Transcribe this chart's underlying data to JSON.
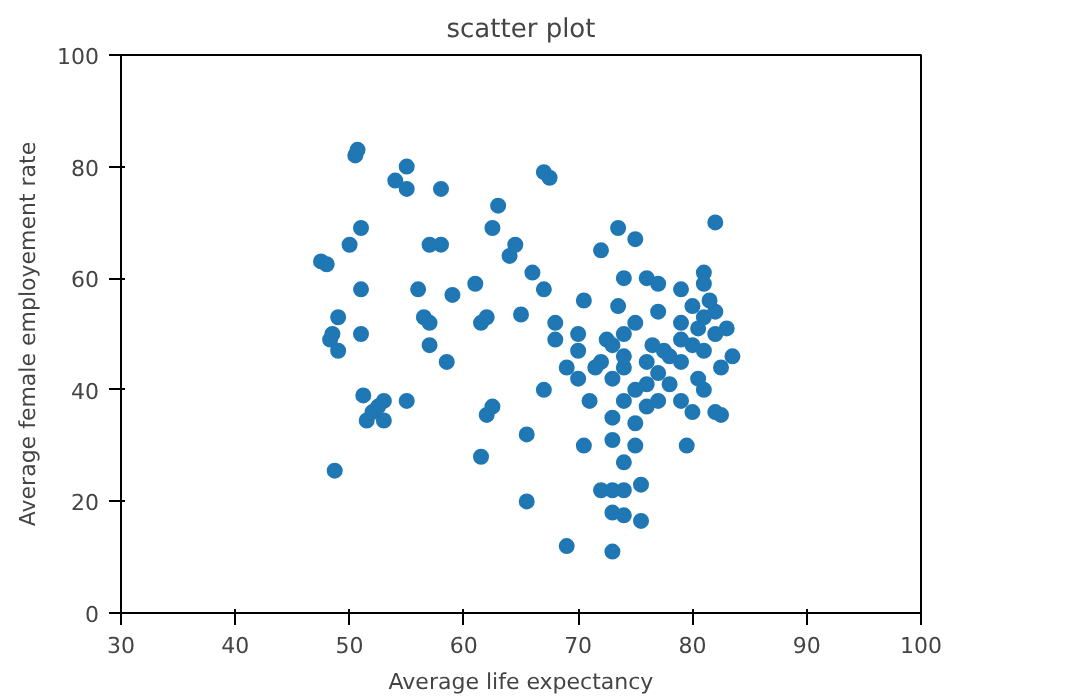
{
  "chart_data": {
    "type": "scatter",
    "title": "scatter plot",
    "xlabel": "Average life expectancy",
    "ylabel": "Average female employement rate",
    "xlim": [
      30,
      100
    ],
    "ylim": [
      0,
      100
    ],
    "xticks": [
      30,
      40,
      50,
      60,
      70,
      80,
      90,
      100
    ],
    "yticks": [
      0,
      20,
      40,
      60,
      80,
      100
    ],
    "grid": false,
    "marker": "circle",
    "series": [
      {
        "color": "#1f77b4",
        "x": [
          47.5,
          48,
          48.5,
          48.3,
          49,
          48.7,
          49,
          50,
          50.5,
          50.7,
          51,
          51,
          51,
          51.2,
          51.5,
          52,
          52.5,
          53,
          53,
          54,
          55,
          55,
          55,
          56,
          56.5,
          57,
          57,
          57,
          58,
          58,
          58.5,
          59,
          61,
          61.5,
          61.5,
          62,
          62,
          62.5,
          62.5,
          63,
          64,
          64.5,
          65,
          65.5,
          65.5,
          66,
          67,
          67.5,
          67,
          67,
          68,
          68,
          69,
          69,
          70,
          70,
          70,
          70.5,
          70.5,
          71,
          72,
          72.5,
          72,
          72,
          73,
          73,
          73,
          73,
          73,
          73,
          73,
          73.5,
          73.5,
          74,
          74,
          74,
          74,
          74,
          74,
          74,
          74,
          75,
          75,
          75,
          75,
          75,
          75.5,
          75.5,
          76,
          76,
          76,
          76,
          76.5,
          77,
          77,
          77,
          77,
          77.5,
          78,
          78,
          79,
          79,
          79,
          79,
          79,
          79.5,
          80,
          80,
          80,
          80.5,
          80.5,
          81,
          81,
          81,
          81,
          81,
          81.5,
          82,
          82,
          82,
          82,
          82.5,
          83,
          83.5,
          82.5,
          71.5
        ],
        "values": [
          63,
          62.5,
          50,
          49,
          47,
          25.5,
          53,
          66,
          82,
          83,
          69,
          58,
          50,
          39,
          34.5,
          36,
          37,
          38,
          34.5,
          77.5,
          80,
          76,
          38,
          58,
          53,
          66,
          52,
          48,
          76,
          66,
          45,
          57,
          59,
          52,
          28,
          53,
          35.5,
          37,
          69,
          73,
          64,
          66,
          53.5,
          32,
          20,
          61,
          79,
          78,
          58,
          40,
          52,
          49,
          12,
          44,
          50,
          47,
          42,
          56,
          30,
          38,
          65,
          49,
          45,
          22,
          22,
          11,
          18,
          31,
          35,
          42,
          48,
          69,
          55,
          60,
          50,
          46,
          44,
          38,
          27,
          22,
          17.5,
          67,
          52,
          40,
          34,
          30,
          23,
          16.5,
          60,
          45,
          41,
          37,
          48,
          59,
          54,
          43,
          38,
          47,
          41,
          46,
          58,
          52,
          49,
          45,
          38,
          30,
          55,
          48,
          36,
          51,
          42,
          61,
          59,
          53,
          47,
          40,
          56,
          70,
          54,
          36,
          50,
          44,
          51,
          46,
          35.5,
          44
        ]
      }
    ]
  }
}
